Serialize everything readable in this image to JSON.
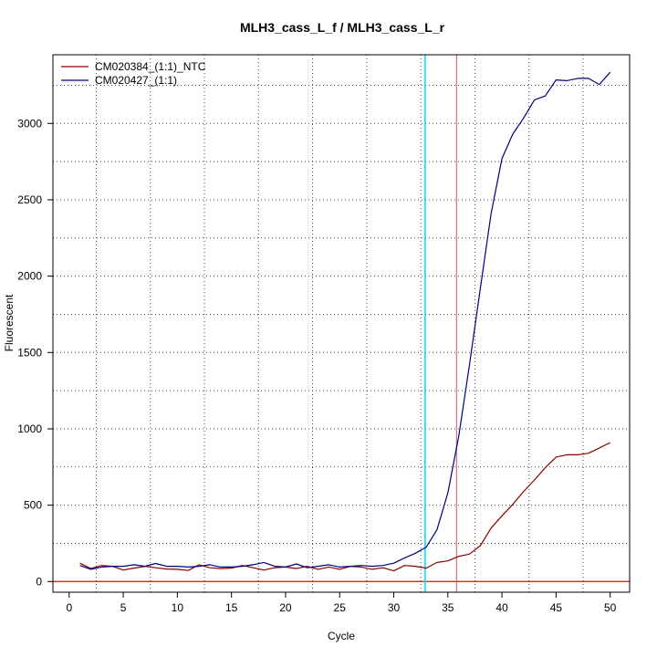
{
  "chart_data": {
    "type": "line",
    "title": "MLH3_cass_L_f / MLH3_cass_L_r",
    "xlabel": "Cycle",
    "ylabel": "Fluorescent",
    "xlim": [
      -1.5,
      51.8
    ],
    "ylim": [
      -70,
      3450
    ],
    "xticks": [
      0,
      5,
      10,
      15,
      20,
      25,
      30,
      35,
      40,
      45,
      50
    ],
    "yticks": [
      0,
      500,
      1000,
      1500,
      2000,
      2500,
      3000
    ],
    "grid": "dotted",
    "legend_position": "top-left",
    "threshold": {
      "value": 0,
      "color": "#ff0000"
    },
    "threshold_cycles": [
      {
        "name": "CM020427_(1:1)",
        "x": 32.9,
        "color": "#00e5ff"
      },
      {
        "name": "CM020384_(1:1)_NTC",
        "x": 35.8,
        "color": "#cc5555"
      }
    ],
    "x": [
      1,
      2,
      3,
      4,
      5,
      6,
      7,
      8,
      9,
      10,
      11,
      12,
      13,
      14,
      15,
      16,
      17,
      18,
      19,
      20,
      21,
      22,
      23,
      24,
      25,
      26,
      27,
      28,
      29,
      30,
      31,
      32,
      33,
      34,
      35,
      36,
      37,
      38,
      39,
      40,
      41,
      42,
      43,
      44,
      45,
      46,
      47,
      48,
      49,
      50
    ],
    "series": [
      {
        "name": "CM020384_(1:1)_NTC",
        "color": "#8b0000",
        "values": [
          120,
          85,
          105,
          100,
          75,
          88,
          100,
          90,
          82,
          80,
          72,
          110,
          90,
          85,
          88,
          105,
          90,
          75,
          90,
          95,
          85,
          100,
          80,
          95,
          80,
          100,
          95,
          80,
          90,
          70,
          105,
          100,
          88,
          125,
          135,
          165,
          180,
          235,
          350,
          430,
          505,
          590,
          665,
          745,
          815,
          830,
          830,
          840,
          875,
          910
        ]
      },
      {
        "name": "CM020427_(1:1)",
        "color": "#000080",
        "values": [
          105,
          80,
          95,
          100,
          100,
          110,
          100,
          118,
          100,
          100,
          95,
          100,
          110,
          95,
          95,
          100,
          110,
          125,
          100,
          95,
          115,
          90,
          100,
          110,
          95,
          100,
          105,
          100,
          105,
          120,
          155,
          185,
          225,
          340,
          580,
          950,
          1420,
          1920,
          2410,
          2770,
          2930,
          3035,
          3155,
          3180,
          3285,
          3280,
          3295,
          3295,
          3255,
          3335
        ]
      }
    ]
  }
}
